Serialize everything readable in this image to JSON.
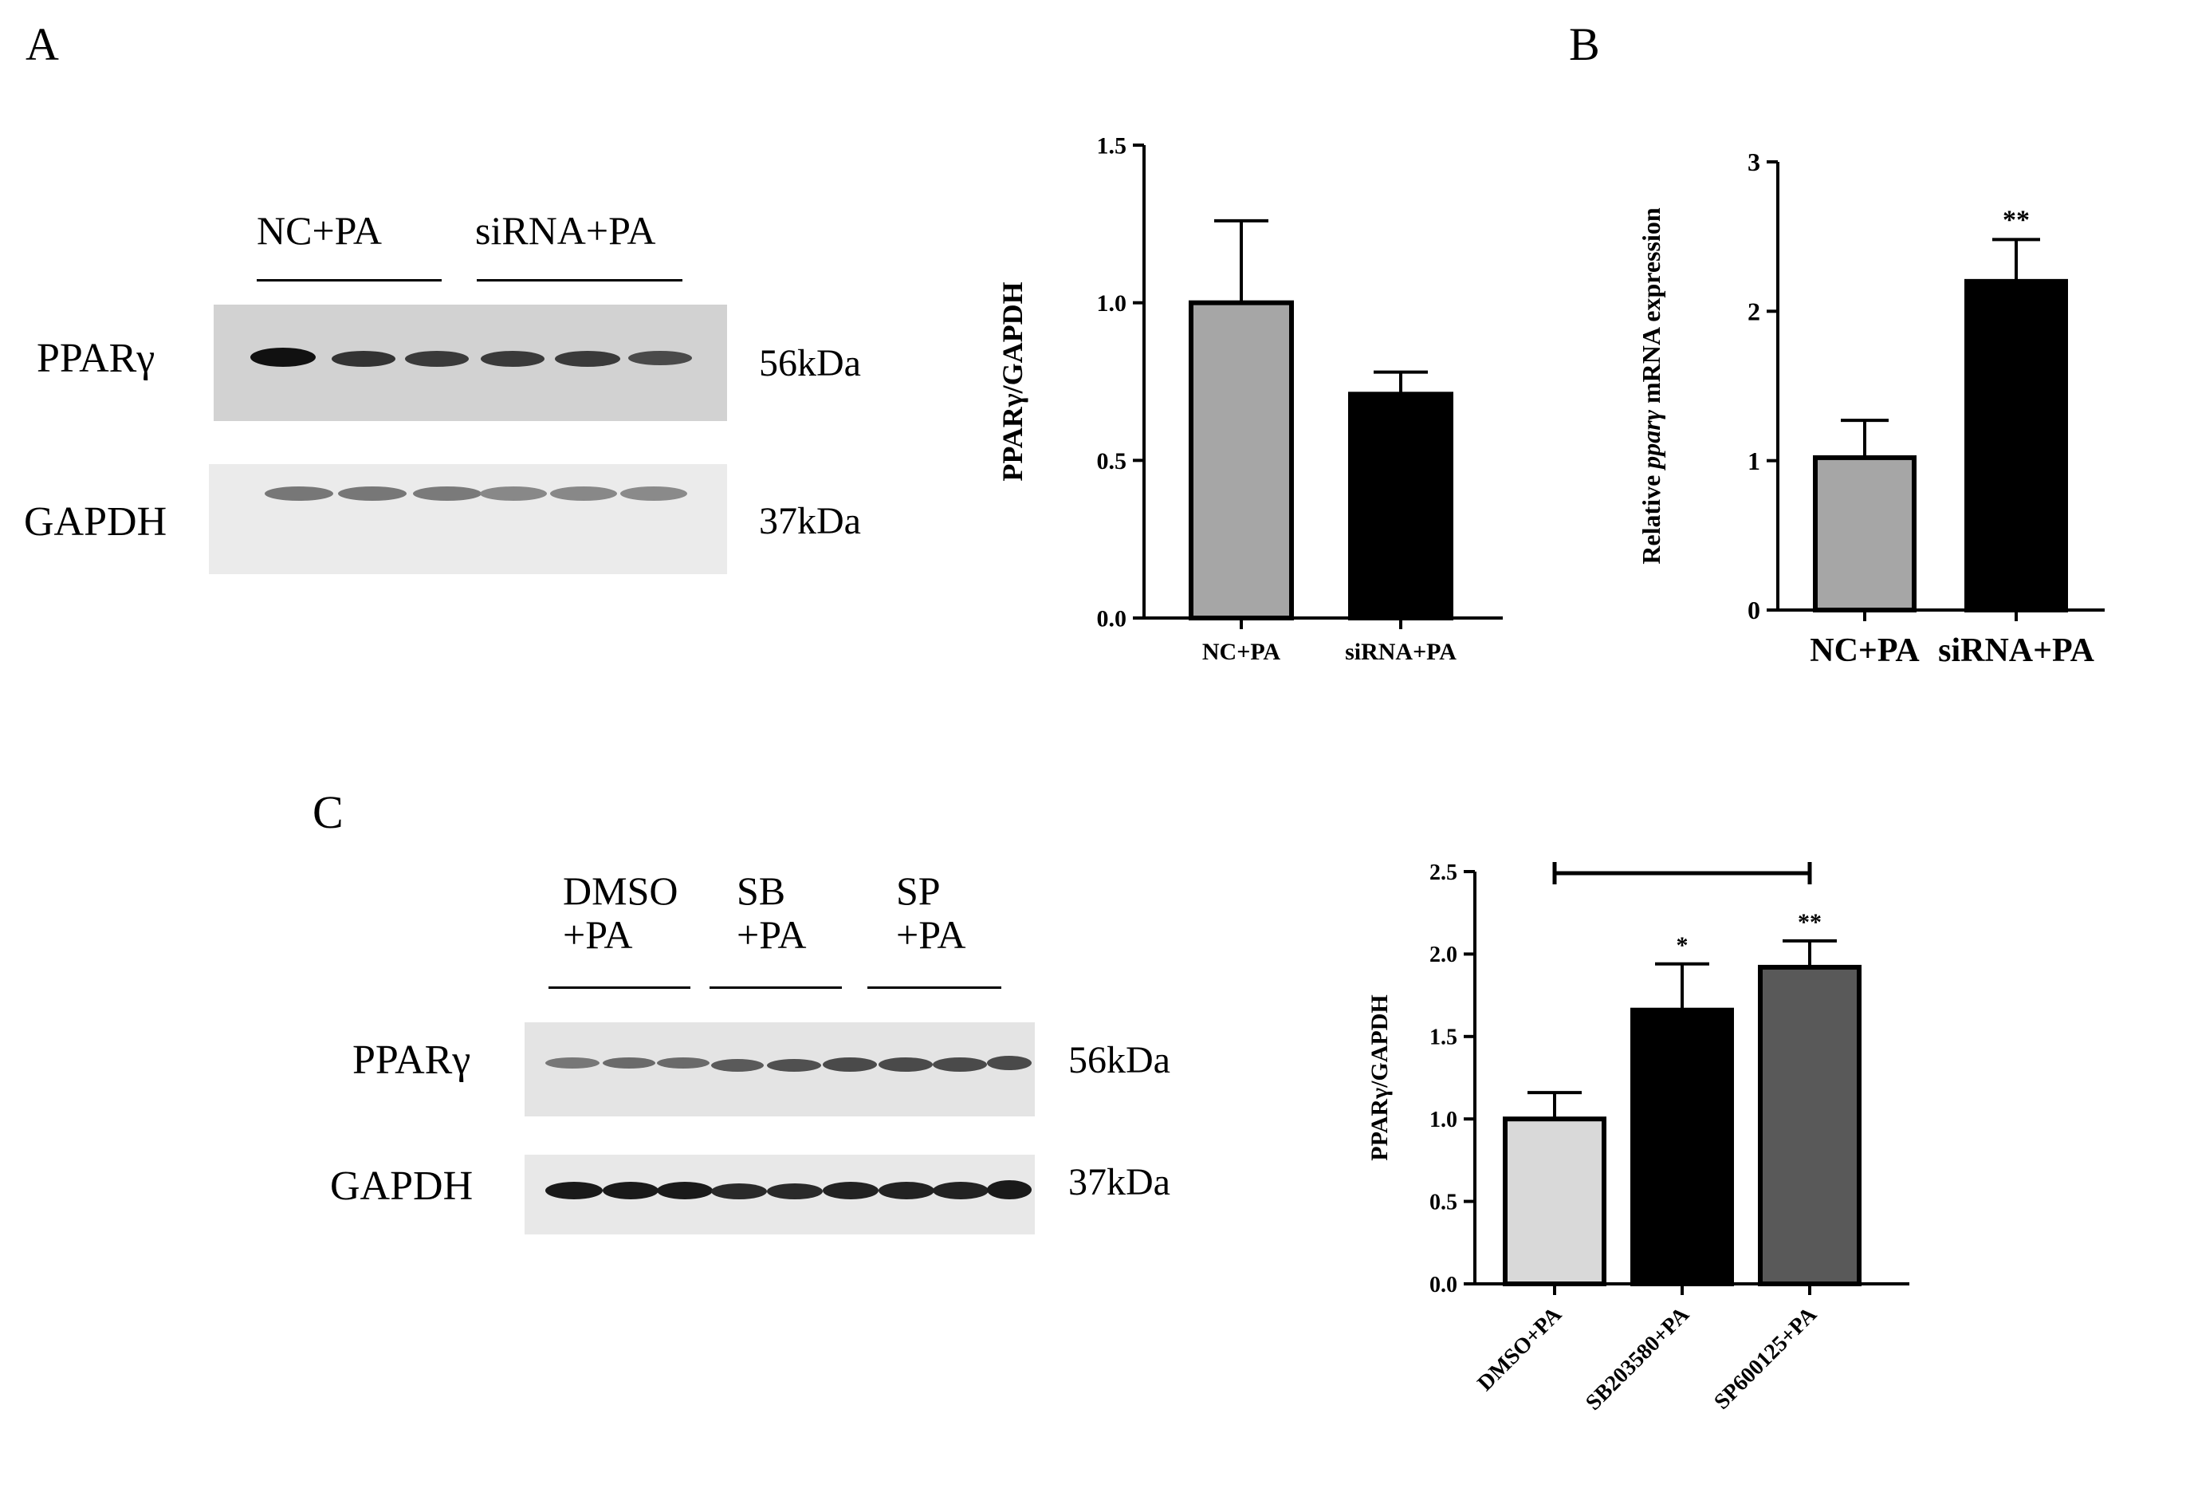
{
  "panels": {
    "a": "A",
    "b": "B",
    "c": "C"
  },
  "blot_a": {
    "groups": [
      "NC+PA",
      "siRNA+PA"
    ],
    "rows": [
      {
        "protein": "PPARγ",
        "size": "56kDa"
      },
      {
        "protein": "GAPDH",
        "size": "37kDa"
      }
    ]
  },
  "blot_c": {
    "groups": [
      {
        "line1": "DMSO",
        "line2": "+PA"
      },
      {
        "line1": "SB",
        "line2": "+PA"
      },
      {
        "line1": "SP",
        "line2": "+PA"
      }
    ],
    "rows": [
      {
        "protein": "PPARγ",
        "size": "56kDa"
      },
      {
        "protein": "GAPDH",
        "size": "37kDa"
      }
    ]
  },
  "chart_data": [
    {
      "id": "A-bar",
      "type": "bar",
      "categories": [
        "NC+PA",
        "siRNA+PA"
      ],
      "values": [
        1.0,
        0.71
      ],
      "errors": [
        0.26,
        0.07
      ],
      "colors": [
        "#a6a6a6",
        "#000000"
      ],
      "ylabel": "PPARγ/GAPDH",
      "ylim": [
        0,
        1.5
      ],
      "yticks": [
        "0.0",
        "0.5",
        "1.0",
        "1.5"
      ],
      "significance": [
        "",
        ""
      ]
    },
    {
      "id": "B-bar",
      "type": "bar",
      "categories": [
        "NC+PA",
        "siRNA+PA"
      ],
      "values": [
        1.02,
        2.2
      ],
      "errors": [
        0.25,
        0.28
      ],
      "colors": [
        "#a6a6a6",
        "#000000"
      ],
      "ylabel_parts": [
        "Relative ",
        "pparγ",
        " mRNA expression"
      ],
      "ylim": [
        0,
        3
      ],
      "yticks": [
        "0",
        "1",
        "2",
        "3"
      ],
      "significance": [
        "",
        "**"
      ]
    },
    {
      "id": "C-bar",
      "type": "bar",
      "categories": [
        "DMSO+PA",
        "SB203580+PA",
        "SP600125+PA"
      ],
      "values": [
        1.0,
        1.66,
        1.92
      ],
      "errors": [
        0.16,
        0.28,
        0.16
      ],
      "colors": [
        "#d9d9d9",
        "#000000",
        "#595959"
      ],
      "ylabel": "PPARγ/GAPDH",
      "ylim": [
        0,
        2.5
      ],
      "yticks": [
        "0.0",
        "0.5",
        "1.0",
        "1.5",
        "2.0",
        "2.5"
      ],
      "significance": [
        "",
        "*",
        "**"
      ],
      "bracket": [
        0,
        2
      ]
    }
  ]
}
